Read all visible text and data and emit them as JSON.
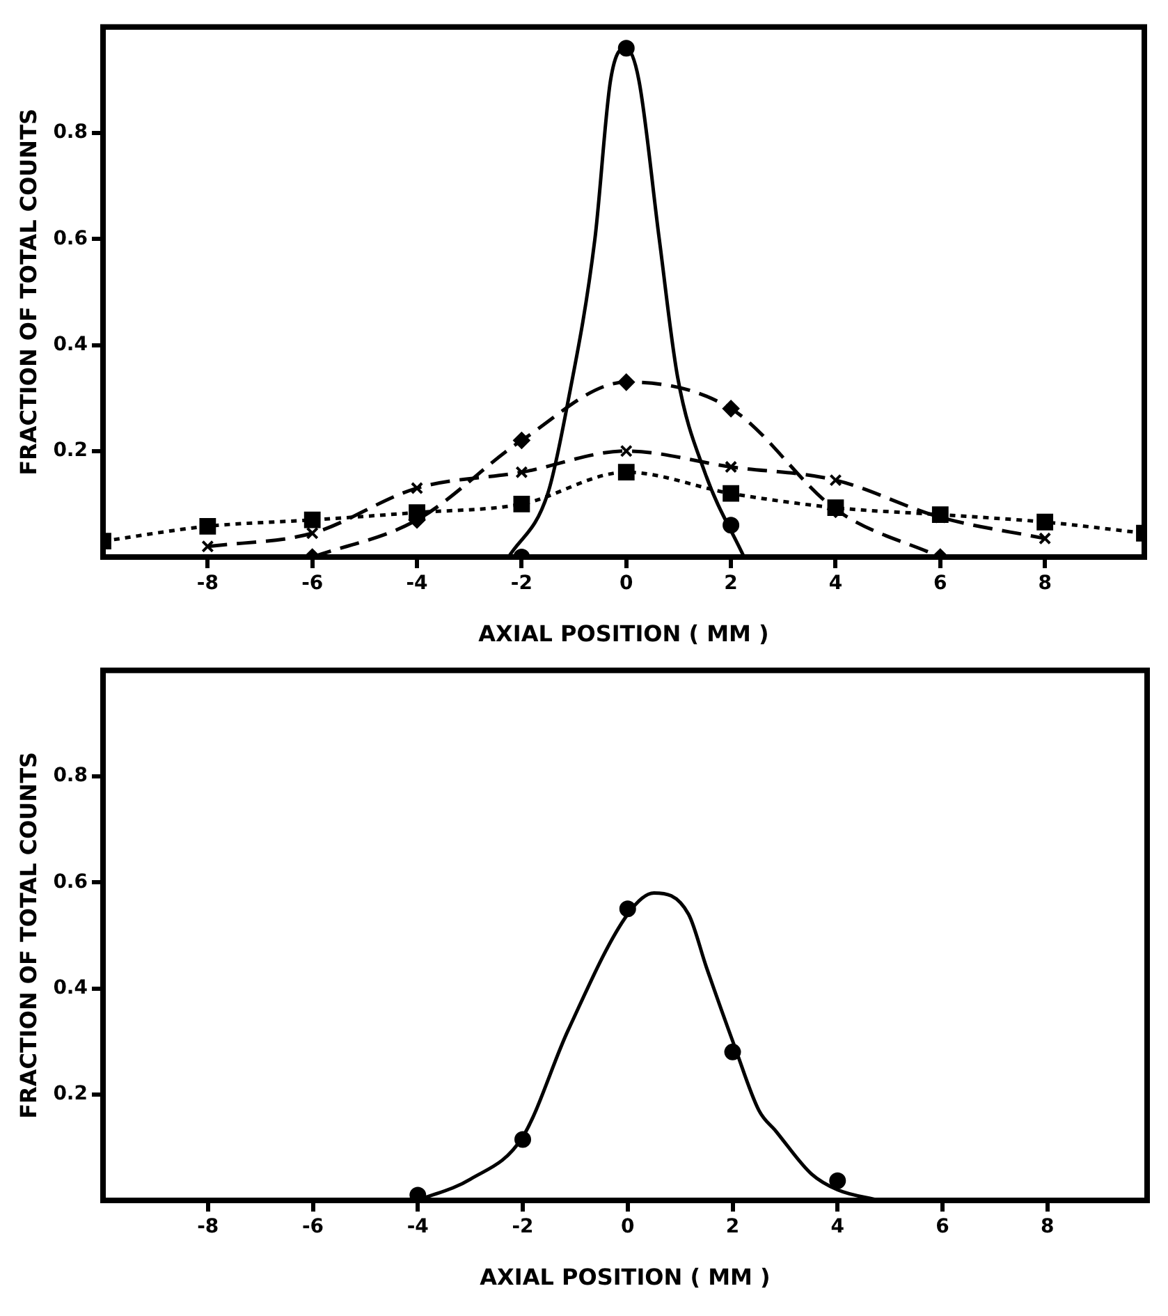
{
  "chart_data": [
    {
      "type": "line",
      "xlabel": "AXIAL POSITION ( MM )",
      "ylabel": "FRACTION OF TOTAL COUNTS",
      "xlim": [
        -10,
        9.9
      ],
      "ylim": [
        0,
        1.0
      ],
      "xticks": [
        -8,
        -6,
        -4,
        -2,
        0,
        2,
        4,
        6,
        8
      ],
      "yticks": [
        0.2,
        0.4,
        0.6,
        0.8
      ],
      "series": [
        {
          "type": "line",
          "color": "#000000",
          "marker": "none",
          "line_style": "solid",
          "x": [
            -2.25,
            -1.5,
            -1.14,
            -0.6,
            -0.3,
            0,
            0.24,
            0.63,
            0.98,
            1.5,
            2.25
          ],
          "values": [
            0,
            0.12,
            0.28,
            0.6,
            0.9,
            0.96,
            0.9,
            0.6,
            0.34,
            0.16,
            0
          ]
        },
        {
          "type": "scatter",
          "color": "#000000",
          "marker": "circle",
          "x": [
            -2,
            0,
            2
          ],
          "values": [
            0.0,
            0.96,
            0.06
          ]
        },
        {
          "type": "line",
          "color": "#000000",
          "marker": "diamond",
          "line_style": "dashed",
          "x": [
            -6,
            -4,
            -2,
            0,
            2,
            4,
            6
          ],
          "values": [
            0.0,
            0.07,
            0.22,
            0.33,
            0.28,
            0.09,
            0.0
          ]
        },
        {
          "type": "line",
          "color": "#000000",
          "marker": "cross",
          "line_style": "dashed",
          "x": [
            -8,
            -6,
            -4,
            -2,
            0,
            2,
            4,
            6,
            8
          ],
          "values": [
            0.02,
            0.045,
            0.13,
            0.16,
            0.2,
            0.17,
            0.145,
            0.075,
            0.035
          ]
        },
        {
          "type": "line",
          "color": "#000000",
          "marker": "square",
          "line_style": "dotted",
          "x": [
            -10,
            -8,
            -6,
            -4,
            -2,
            0,
            2,
            4,
            6,
            8,
            9.9
          ],
          "values": [
            0.03,
            0.058,
            0.07,
            0.084,
            0.1,
            0.16,
            0.12,
            0.093,
            0.08,
            0.066,
            0.045
          ]
        }
      ]
    },
    {
      "type": "line",
      "xlabel": "AXIAL POSITION ( MM )",
      "ylabel": "FRACTION OF TOTAL COUNTS",
      "xlim": [
        -10,
        9.9
      ],
      "ylim": [
        0,
        1.0
      ],
      "xticks": [
        -8,
        -6,
        -4,
        -2,
        0,
        2,
        4,
        6,
        8
      ],
      "yticks": [
        0.2,
        0.4,
        0.6,
        0.8
      ],
      "series": [
        {
          "type": "line",
          "color": "#000000",
          "marker": "none",
          "line_style": "solid",
          "x": [
            -4,
            -3,
            -2,
            -1.14,
            0,
            0.5,
            1.16,
            1.5,
            2.04,
            2.5,
            2.83,
            3.5,
            4,
            4.8
          ],
          "values": [
            0,
            0.04,
            0.12,
            0.32,
            0.54,
            0.58,
            0.54,
            0.44,
            0.29,
            0.17,
            0.13,
            0.05,
            0.02,
            0
          ]
        },
        {
          "type": "scatter",
          "color": "#000000",
          "marker": "circle",
          "x": [
            -4,
            -2,
            0,
            2,
            4
          ],
          "values": [
            0.01,
            0.115,
            0.55,
            0.28,
            0.037
          ]
        }
      ]
    }
  ]
}
